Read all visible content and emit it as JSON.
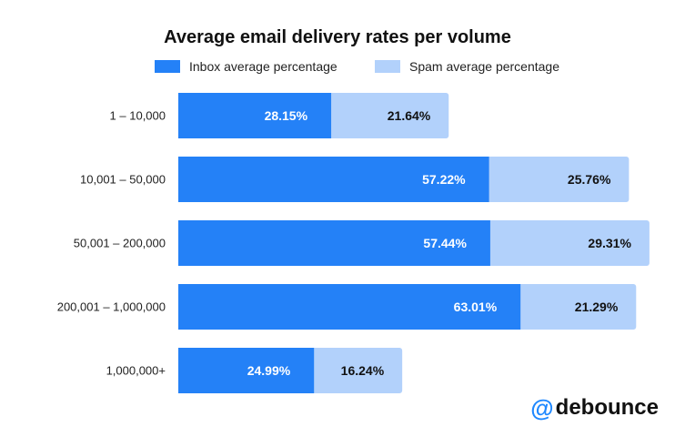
{
  "chart_data": {
    "type": "bar",
    "orientation": "horizontal",
    "stacked": true,
    "title": "Average email delivery rates per volume",
    "categories": [
      "1 – 10,000",
      "10,001 – 50,000",
      "50,001 – 200,000",
      "200,001 – 1,000,000",
      "1,000,000+"
    ],
    "series": [
      {
        "name": "Inbox average percentage",
        "values": [
          28.15,
          57.22,
          57.44,
          63.01,
          24.99
        ],
        "labels": [
          "28.15%",
          "57.22%",
          "57.44%",
          "63.01%",
          "24.99%"
        ],
        "color": "#2481f7"
      },
      {
        "name": "Spam average percentage",
        "values": [
          21.64,
          25.76,
          29.31,
          21.29,
          16.24
        ],
        "labels": [
          "21.64%",
          "25.76%",
          "29.31%",
          "21.29%",
          "16.24%"
        ],
        "color": "#b2d1fb"
      }
    ],
    "xlabel": "",
    "ylabel": "",
    "legend_position": "top",
    "grid": false
  },
  "logo": {
    "symbol": "@",
    "text": "debounce"
  },
  "colors": {
    "inbox_label": "#ffffff",
    "spam_label": "#111111",
    "axis_label": "#222222"
  }
}
